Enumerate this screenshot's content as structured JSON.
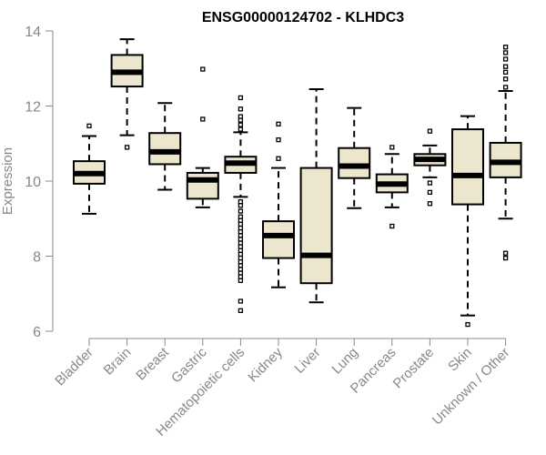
{
  "chart_data": {
    "type": "boxplot",
    "title": "ENSG00000124702 - KLHDC3",
    "ylabel": "Expression",
    "xlabel": "",
    "ylim": [
      6,
      14
    ],
    "yticks": [
      6,
      8,
      10,
      12,
      14
    ],
    "colors": {
      "box_fill": "#ede6cf",
      "box_stroke": "#000000",
      "axis": "#888888"
    },
    "categories": [
      "Bladder",
      "Brain",
      "Breast",
      "Gastric",
      "Hematopoietic cells",
      "Kidney",
      "Liver",
      "Lung",
      "Pancreas",
      "Prostate",
      "Skin",
      "Unknown / Other"
    ],
    "boxes": [
      {
        "name": "Bladder",
        "q1": 9.93,
        "median": 10.2,
        "q3": 10.53,
        "whisker_low": 9.13,
        "whisker_high": 11.2,
        "outliers": [
          11.47
        ]
      },
      {
        "name": "Brain",
        "q1": 12.52,
        "median": 12.9,
        "q3": 13.36,
        "whisker_low": 11.22,
        "whisker_high": 13.78,
        "outliers": [
          10.9
        ]
      },
      {
        "name": "Breast",
        "q1": 10.45,
        "median": 10.78,
        "q3": 11.28,
        "whisker_low": 9.77,
        "whisker_high": 12.08,
        "outliers": []
      },
      {
        "name": "Gastric",
        "q1": 9.53,
        "median": 10.03,
        "q3": 10.22,
        "whisker_low": 9.3,
        "whisker_high": 10.35,
        "outliers": [
          12.98,
          11.65
        ]
      },
      {
        "name": "Hematopoietic cells",
        "q1": 10.22,
        "median": 10.48,
        "q3": 10.65,
        "whisker_low": 9.58,
        "whisker_high": 11.3,
        "outliers": [
          12.22,
          11.92,
          11.72,
          11.62,
          11.5,
          11.38,
          9.45,
          9.35,
          9.2,
          9.05,
          8.95,
          8.85,
          8.75,
          8.65,
          8.55,
          8.45,
          8.35,
          8.25,
          8.15,
          8.05,
          7.95,
          7.85,
          7.75,
          7.65,
          7.55,
          7.45,
          7.35,
          6.8,
          6.55
        ]
      },
      {
        "name": "Kidney",
        "q1": 7.95,
        "median": 8.55,
        "q3": 8.93,
        "whisker_low": 7.17,
        "whisker_high": 10.35,
        "outliers": [
          11.52,
          11.1,
          10.6
        ]
      },
      {
        "name": "Liver",
        "q1": 7.28,
        "median": 8.02,
        "q3": 10.35,
        "whisker_low": 6.77,
        "whisker_high": 12.45,
        "outliers": []
      },
      {
        "name": "Lung",
        "q1": 10.08,
        "median": 10.4,
        "q3": 10.88,
        "whisker_low": 9.28,
        "whisker_high": 11.95,
        "outliers": []
      },
      {
        "name": "Pancreas",
        "q1": 9.7,
        "median": 9.92,
        "q3": 10.18,
        "whisker_low": 9.3,
        "whisker_high": 10.72,
        "outliers": [
          10.9,
          8.8
        ]
      },
      {
        "name": "Prostate",
        "q1": 10.42,
        "median": 10.58,
        "q3": 10.72,
        "whisker_low": 10.1,
        "whisker_high": 10.95,
        "outliers": [
          11.33,
          9.95,
          9.7,
          9.4
        ]
      },
      {
        "name": "Skin",
        "q1": 9.38,
        "median": 10.15,
        "q3": 11.38,
        "whisker_low": 6.42,
        "whisker_high": 11.73,
        "outliers": [
          6.18
        ]
      },
      {
        "name": "Unknown / Other",
        "q1": 10.1,
        "median": 10.5,
        "q3": 11.02,
        "whisker_low": 9.0,
        "whisker_high": 12.4,
        "outliers": [
          13.57,
          13.42,
          13.25,
          13.05,
          12.9,
          12.72,
          12.5,
          8.08,
          7.95
        ]
      }
    ]
  }
}
